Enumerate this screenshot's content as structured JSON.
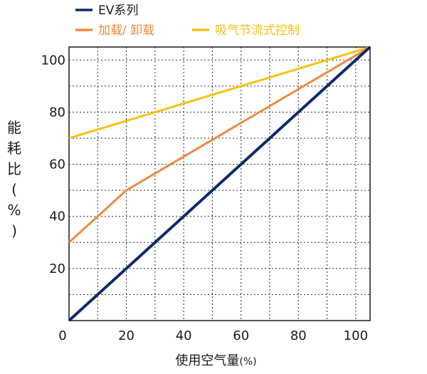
{
  "chart_data": {
    "type": "line",
    "xlabel": "使用空气量",
    "xlabel_unit": "(%)",
    "ylabel": [
      "能",
      "耗",
      "比",
      "(",
      "%",
      ")"
    ],
    "xlim": [
      0,
      105
    ],
    "ylim": [
      0,
      105
    ],
    "x_ticks": [
      0,
      20,
      40,
      60,
      80,
      100
    ],
    "y_ticks": [
      20,
      40,
      60,
      80,
      100
    ],
    "grid": true,
    "legend_position": "top",
    "series": [
      {
        "name": "EV系列",
        "color": "#0d2a6b",
        "x": [
          0,
          105
        ],
        "y": [
          0,
          105
        ]
      },
      {
        "name": "加载/ 卸载",
        "color": "#f08a3e",
        "x": [
          0,
          20,
          105
        ],
        "y": [
          30,
          50,
          105
        ]
      },
      {
        "name": "吸气节流式控制",
        "color": "#f5c214",
        "x": [
          0,
          105
        ],
        "y": [
          70,
          105
        ]
      }
    ]
  }
}
